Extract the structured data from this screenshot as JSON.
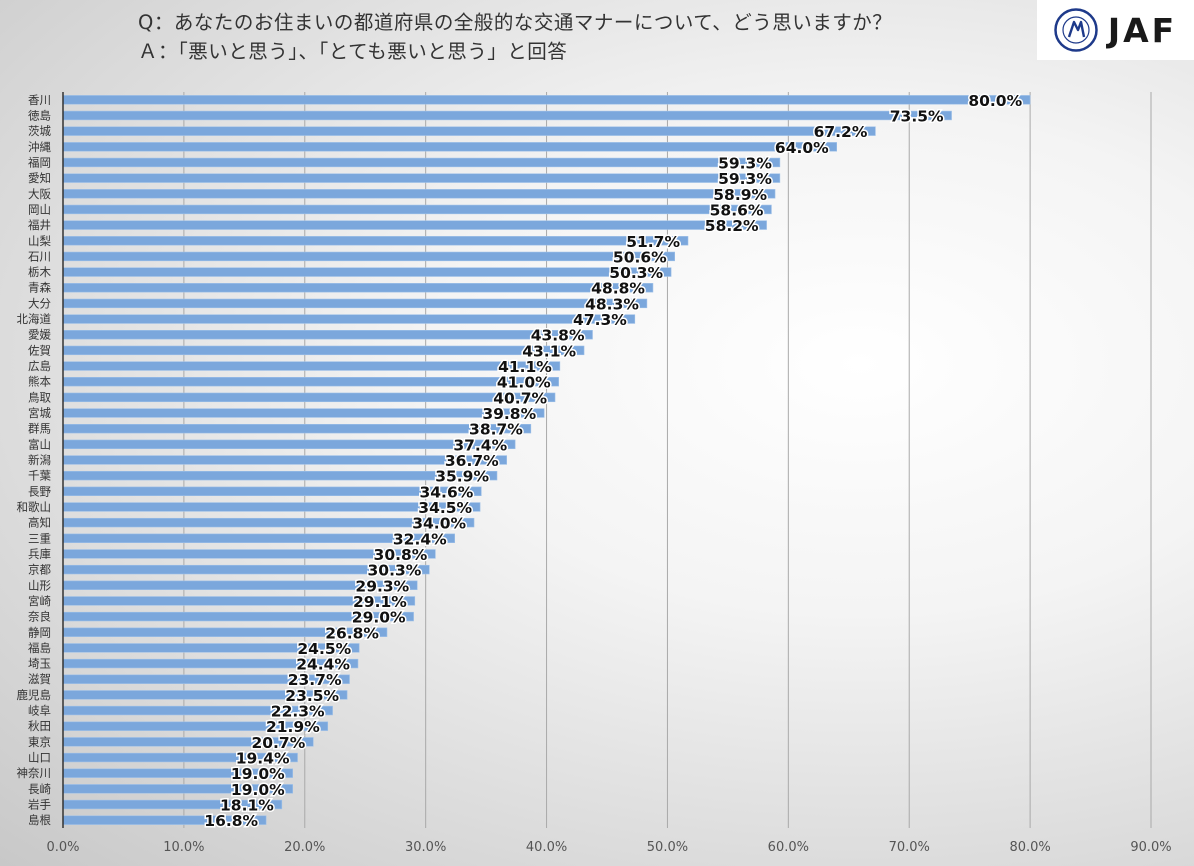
{
  "header": {
    "question": "Q：あなたのお住まいの都道府県の全般的な交通マナーについて、どう思いますか？",
    "answer": "Ａ：「悪いと思う」、「とても悪いと思う」と回答"
  },
  "logo": {
    "text": "JAF",
    "seal_text": "JAPAN AUTOMOBILE FEDERATION",
    "accent_color": "#1e3a8a"
  },
  "chart_data": {
    "type": "bar",
    "orientation": "horizontal",
    "title": "",
    "xlabel": "",
    "ylabel": "",
    "xlim": [
      0,
      90
    ],
    "xticks": [
      "0.0%",
      "10.0%",
      "20.0%",
      "30.0%",
      "40.0%",
      "50.0%",
      "60.0%",
      "70.0%",
      "80.0%",
      "90.0%"
    ],
    "grid": true,
    "bar_color": "#7ba7dc",
    "categories": [
      "香川",
      "徳島",
      "茨城",
      "沖縄",
      "福岡",
      "愛知",
      "大阪",
      "岡山",
      "福井",
      "山梨",
      "石川",
      "栃木",
      "青森",
      "大分",
      "北海道",
      "愛媛",
      "佐賀",
      "広島",
      "熊本",
      "鳥取",
      "宮城",
      "群馬",
      "富山",
      "新潟",
      "千葉",
      "長野",
      "和歌山",
      "高知",
      "三重",
      "兵庫",
      "京都",
      "山形",
      "宮崎",
      "奈良",
      "静岡",
      "福島",
      "埼玉",
      "滋賀",
      "鹿児島",
      "岐阜",
      "秋田",
      "東京",
      "山口",
      "神奈川",
      "長崎",
      "岩手",
      "島根"
    ],
    "values": [
      80.0,
      73.5,
      67.2,
      64.0,
      59.3,
      59.3,
      58.9,
      58.6,
      58.2,
      51.7,
      50.6,
      50.3,
      48.8,
      48.3,
      47.3,
      43.8,
      43.1,
      41.1,
      41.0,
      40.7,
      39.8,
      38.7,
      37.4,
      36.7,
      35.9,
      34.6,
      34.5,
      34.0,
      32.4,
      30.8,
      30.3,
      29.3,
      29.1,
      29.0,
      26.8,
      24.5,
      24.4,
      23.7,
      23.5,
      22.3,
      21.9,
      20.7,
      19.4,
      19.0,
      19.0,
      18.1,
      16.8
    ],
    "data_labels": [
      "80.0%",
      "73.5%",
      "67.2%",
      "64.0%",
      "59.3%",
      "59.3%",
      "58.9%",
      "58.6%",
      "58.2%",
      "51.7%",
      "50.6%",
      "50.3%",
      "48.8%",
      "48.3%",
      "47.3%",
      "43.8%",
      "43.1%",
      "41.1%",
      "41.0%",
      "40.7%",
      "39.8%",
      "38.7%",
      "37.4%",
      "36.7%",
      "35.9%",
      "34.6%",
      "34.5%",
      "34.0%",
      "32.4%",
      "30.8%",
      "30.3%",
      "29.3%",
      "29.1%",
      "29.0%",
      "26.8%",
      "24.5%",
      "24.4%",
      "23.7%",
      "23.5%",
      "22.3%",
      "21.9%",
      "20.7%",
      "19.4%",
      "19.0%",
      "19.0%",
      "18.1%",
      "16.8%"
    ]
  }
}
